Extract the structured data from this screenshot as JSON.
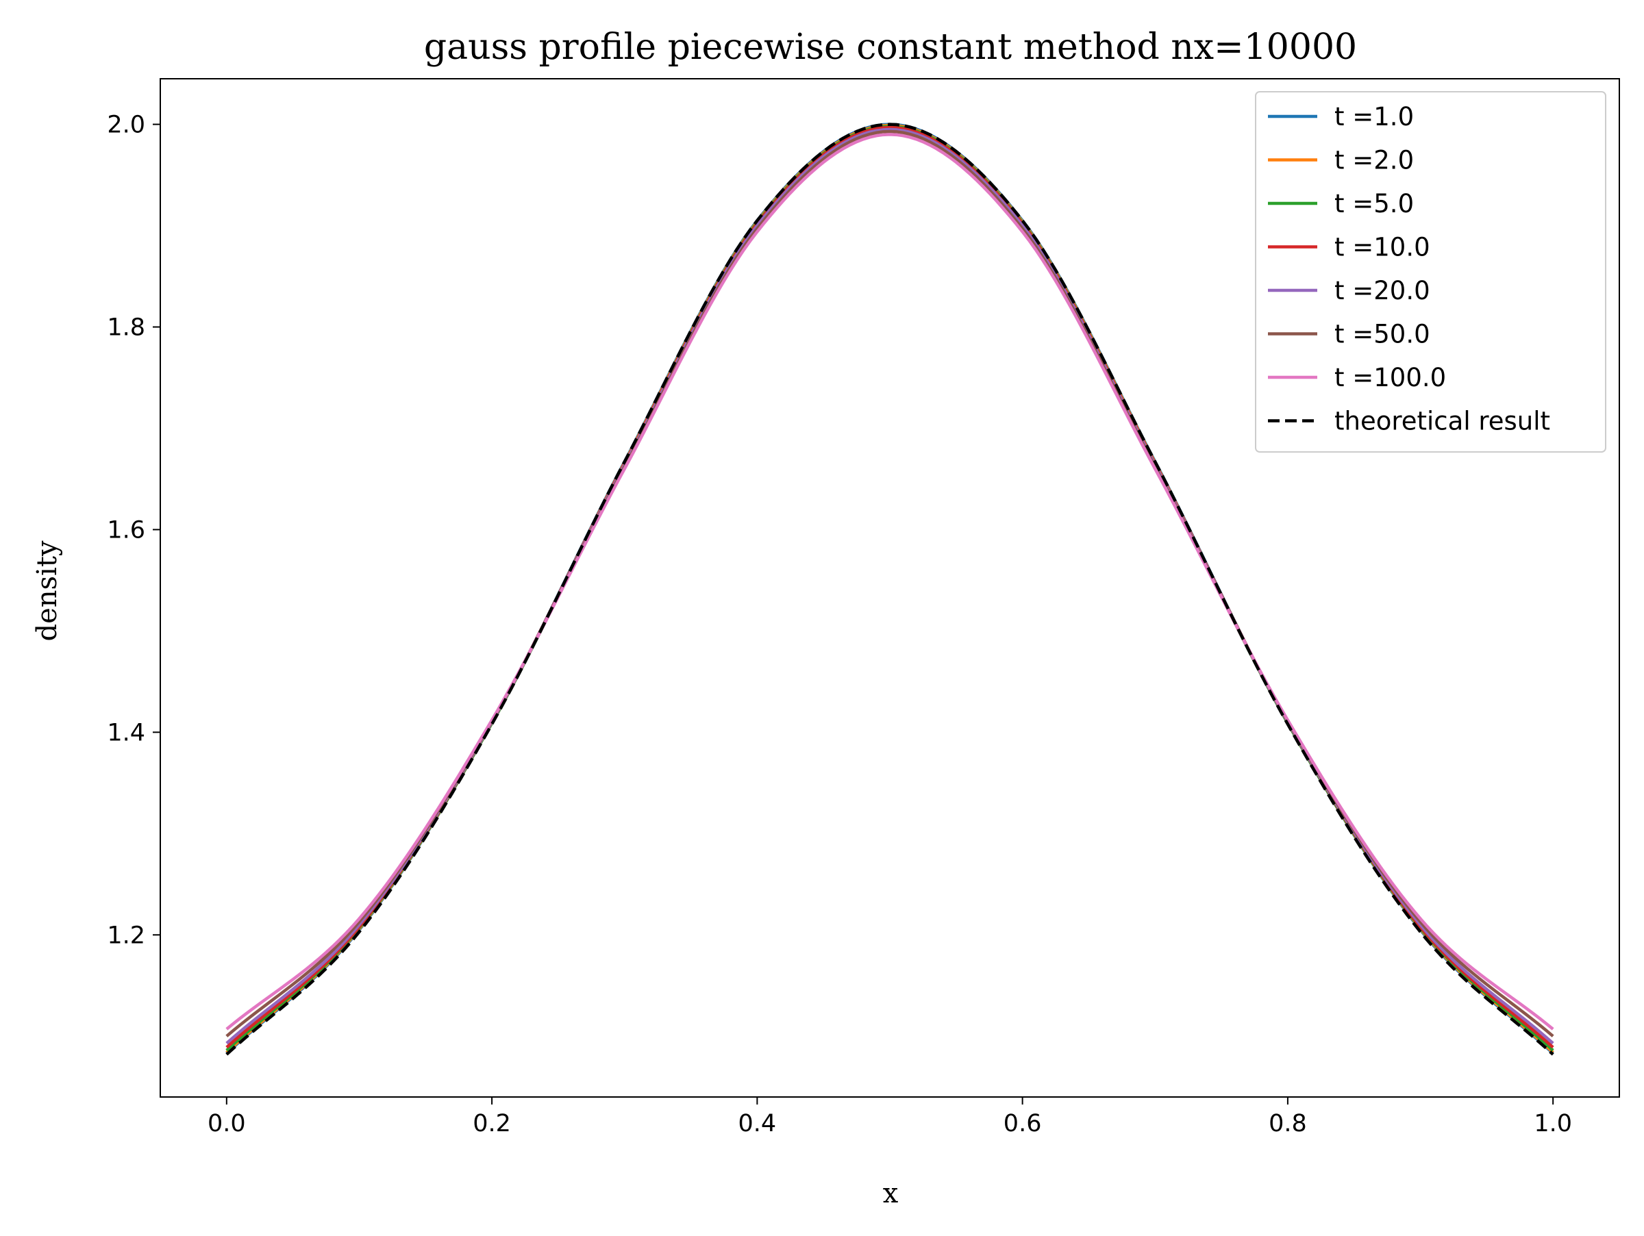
{
  "chart_data": {
    "type": "line",
    "title": "gauss profile piecewise constant method nx=10000",
    "xlabel": "x",
    "ylabel": "density",
    "xlim": [
      -0.05,
      1.05
    ],
    "ylim": [
      1.04,
      2.045
    ],
    "xticks": [
      0.0,
      0.2,
      0.4,
      0.6,
      0.8,
      1.0
    ],
    "xtick_labels": [
      "0.0",
      "0.2",
      "0.4",
      "0.6",
      "0.8",
      "1.0"
    ],
    "yticks": [
      1.2,
      1.4,
      1.6,
      1.8,
      2.0
    ],
    "ytick_labels": [
      "1.2",
      "1.4",
      "1.6",
      "1.8",
      "2.0"
    ],
    "grid": false,
    "legend_position": "top-right",
    "series": [
      {
        "name": "t =1.0",
        "color": "#1f77b4",
        "style": "solid",
        "x": [
          0.0,
          0.1,
          0.2,
          0.3,
          0.4,
          0.5,
          0.6,
          0.7,
          0.8,
          0.9,
          1.0
        ],
        "y": [
          1.083,
          1.205,
          1.409,
          1.667,
          1.905,
          2.0,
          1.905,
          1.667,
          1.409,
          1.205,
          1.083
        ]
      },
      {
        "name": "t =2.0",
        "color": "#ff7f0e",
        "style": "solid",
        "x": [
          0.0,
          0.1,
          0.2,
          0.3,
          0.4,
          0.5,
          0.6,
          0.7,
          0.8,
          0.9,
          1.0
        ],
        "y": [
          1.084,
          1.206,
          1.409,
          1.666,
          1.904,
          1.999,
          1.904,
          1.666,
          1.409,
          1.206,
          1.084
        ]
      },
      {
        "name": "t =5.0",
        "color": "#2ca02c",
        "style": "solid",
        "x": [
          0.0,
          0.1,
          0.2,
          0.3,
          0.4,
          0.5,
          0.6,
          0.7,
          0.8,
          0.9,
          1.0
        ],
        "y": [
          1.086,
          1.207,
          1.409,
          1.665,
          1.903,
          1.998,
          1.903,
          1.665,
          1.409,
          1.207,
          1.086
        ]
      },
      {
        "name": "t =10.0",
        "color": "#d62728",
        "style": "solid",
        "x": [
          0.0,
          0.1,
          0.2,
          0.3,
          0.4,
          0.5,
          0.6,
          0.7,
          0.8,
          0.9,
          1.0
        ],
        "y": [
          1.089,
          1.208,
          1.41,
          1.665,
          1.902,
          1.997,
          1.902,
          1.665,
          1.41,
          1.208,
          1.089
        ]
      },
      {
        "name": "t =20.0",
        "color": "#9467bd",
        "style": "solid",
        "x": [
          0.0,
          0.1,
          0.2,
          0.3,
          0.4,
          0.5,
          0.6,
          0.7,
          0.8,
          0.9,
          1.0
        ],
        "y": [
          1.093,
          1.21,
          1.41,
          1.664,
          1.9,
          1.995,
          1.9,
          1.664,
          1.41,
          1.21,
          1.093
        ]
      },
      {
        "name": "t =50.0",
        "color": "#8c564b",
        "style": "solid",
        "x": [
          0.0,
          0.1,
          0.2,
          0.3,
          0.4,
          0.5,
          0.6,
          0.7,
          0.8,
          0.9,
          1.0
        ],
        "y": [
          1.1,
          1.213,
          1.411,
          1.662,
          1.897,
          1.993,
          1.897,
          1.662,
          1.411,
          1.213,
          1.1
        ]
      },
      {
        "name": "t =100.0",
        "color": "#e377c2",
        "style": "solid",
        "x": [
          0.0,
          0.1,
          0.2,
          0.3,
          0.4,
          0.5,
          0.6,
          0.7,
          0.8,
          0.9,
          1.0
        ],
        "y": [
          1.107,
          1.216,
          1.412,
          1.66,
          1.894,
          1.99,
          1.894,
          1.66,
          1.412,
          1.216,
          1.107
        ]
      },
      {
        "name": "theoretical result",
        "color": "#000000",
        "style": "dashed",
        "x": [
          0.0,
          0.1,
          0.2,
          0.3,
          0.4,
          0.5,
          0.6,
          0.7,
          0.8,
          0.9,
          1.0
        ],
        "y": [
          1.082,
          1.203,
          1.408,
          1.667,
          1.905,
          2.0,
          1.905,
          1.667,
          1.408,
          1.203,
          1.082
        ]
      }
    ]
  }
}
